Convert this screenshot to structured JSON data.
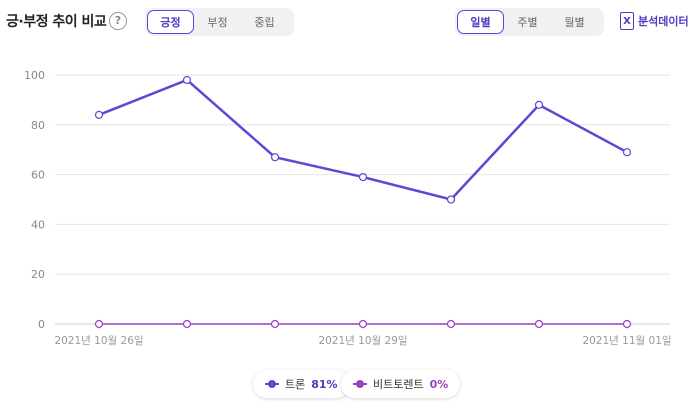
{
  "header": {
    "title": "긍·부정 추이 비교",
    "help": "?",
    "sentiment_tabs": [
      "긍정",
      "부정",
      "중립"
    ],
    "period_tabs": [
      "일별",
      "주별",
      "월별"
    ],
    "export_label": "분석데이터"
  },
  "colors": {
    "accent": "#5b49d6",
    "series1": "#5b49d6",
    "series2": "#9b3fc0",
    "grid": "#e6e6e6"
  },
  "chart_data": {
    "type": "line",
    "x": [
      "2021년 10월 26일",
      "2021년 10월 27일",
      "2021년 10월 28일",
      "2021년 10월 29일",
      "2021년 10월 30일",
      "2021년 10월 31일",
      "2021년 11월 01일"
    ],
    "x_tick_labels": [
      "2021년 10월 26일",
      "2021년 10월 29일",
      "2021년 11월 01일"
    ],
    "series": [
      {
        "name": "트론",
        "values": [
          84,
          98,
          67,
          59,
          50,
          88,
          69
        ]
      },
      {
        "name": "비트토렌트",
        "values": [
          0,
          0,
          0,
          0,
          0,
          0,
          0
        ]
      }
    ],
    "ylim": [
      0,
      100
    ],
    "y_ticks": [
      0,
      20,
      40,
      60,
      80,
      100
    ],
    "grid": true,
    "legend_position": "bottom"
  },
  "legend": [
    {
      "name": "트론",
      "pct": "81%"
    },
    {
      "name": "비트토렌트",
      "pct": "0%"
    }
  ]
}
